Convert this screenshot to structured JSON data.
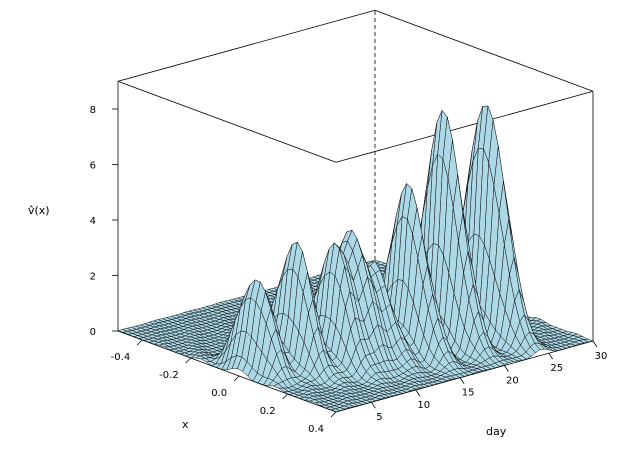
{
  "chart_data": {
    "type": "surface",
    "title": "",
    "xlabel": "x",
    "ylabel": "day",
    "zlabel": "v̂(x)",
    "x_range": [
      -0.5,
      0.4
    ],
    "day_range": [
      1,
      30
    ],
    "z_range": [
      0,
      9
    ],
    "x_ticks": [
      "-0.4",
      "-0.2",
      "0.0",
      "0.2",
      "0.4"
    ],
    "day_ticks": [
      "5",
      "10",
      "15",
      "20",
      "25",
      "30"
    ],
    "z_ticks": [
      "0",
      "2",
      "4",
      "6",
      "8"
    ],
    "surface_color": "#add8e6",
    "mesh_color": "#000000",
    "description_peaks": [
      {
        "day": 3,
        "x": 0.0,
        "height": 3.4
      },
      {
        "day": 6,
        "x": 0.05,
        "height": 4.6
      },
      {
        "day": 9,
        "x": 0.1,
        "height": 4.2
      },
      {
        "day": 11,
        "x": 0.1,
        "height": 4.5
      },
      {
        "day": 13,
        "x": 0.12,
        "height": 3.2
      },
      {
        "day": 16,
        "x": 0.15,
        "height": 6.0
      },
      {
        "day": 20,
        "x": 0.15,
        "height": 8.3
      },
      {
        "day": 24,
        "x": 0.18,
        "height": 8.4
      }
    ]
  }
}
